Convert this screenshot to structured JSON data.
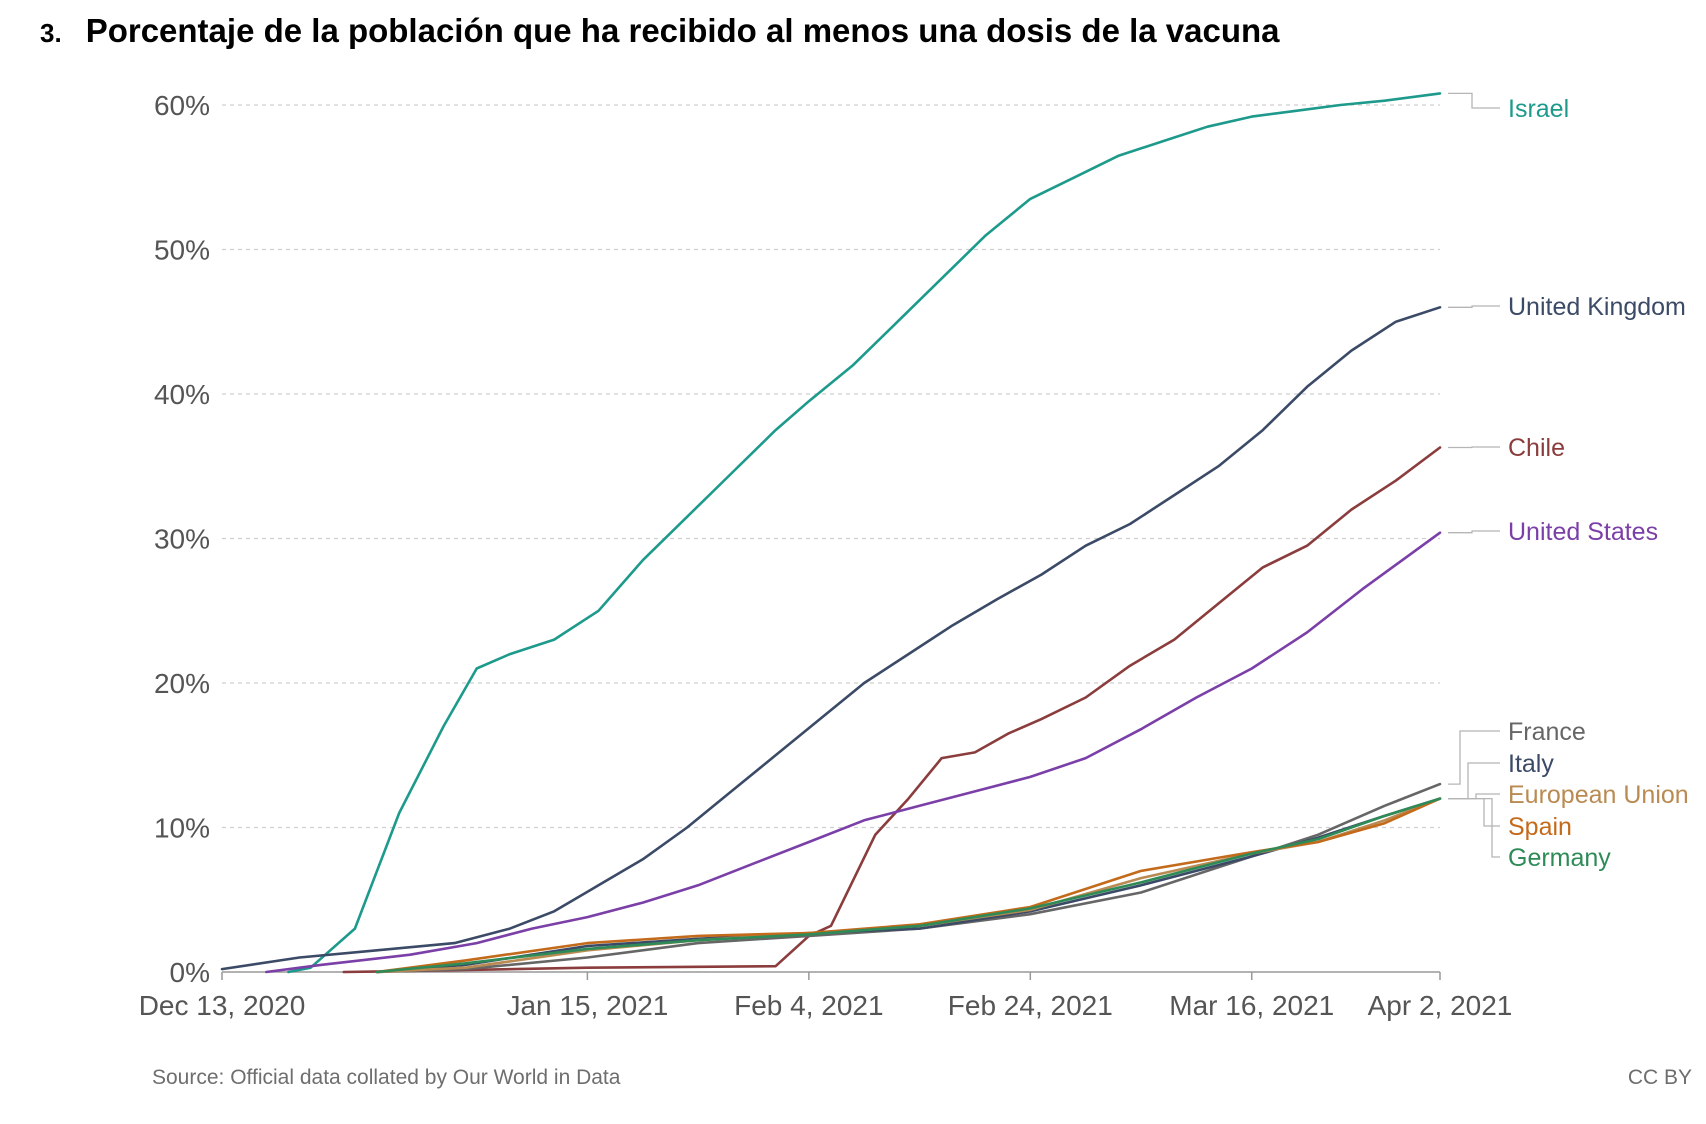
{
  "title": {
    "number": "3.",
    "text": "Porcentaje de la población que ha recibido al menos una dosis de la vacuna"
  },
  "source": "Source: Official data collated by Our World in Data",
  "license": "CC BY",
  "chart_data": {
    "type": "line",
    "title": "Porcentaje de la población que ha recibido al menos una dosis de la vacuna",
    "y_ticks": [
      "0%",
      "10%",
      "20%",
      "30%",
      "40%",
      "50%",
      "60%"
    ],
    "y_tick_values": [
      0,
      10,
      20,
      30,
      40,
      50,
      60
    ],
    "ylim": [
      0,
      60
    ],
    "x_ticks": [
      "Dec 13, 2020",
      "Jan 15, 2021",
      "Feb 4, 2021",
      "Feb 24, 2021",
      "Mar 16, 2021",
      "Apr 2, 2021"
    ],
    "x_tick_dates": [
      "2020-12-13",
      "2021-01-15",
      "2021-02-04",
      "2021-02-24",
      "2021-03-16",
      "2021-04-02"
    ],
    "xlim": [
      "2020-12-13",
      "2021-04-02"
    ],
    "grid": "horizontal dashed",
    "legend": "right, line-end labels",
    "series": [
      {
        "name": "Israel",
        "color": "#1d9a8c",
        "x": [
          "2020-12-19",
          "2020-12-21",
          "2020-12-25",
          "2020-12-29",
          "2021-01-02",
          "2021-01-05",
          "2021-01-08",
          "2021-01-12",
          "2021-01-16",
          "2021-01-20",
          "2021-01-24",
          "2021-01-28",
          "2021-02-01",
          "2021-02-04",
          "2021-02-08",
          "2021-02-12",
          "2021-02-16",
          "2021-02-20",
          "2021-02-24",
          "2021-02-28",
          "2021-03-04",
          "2021-03-08",
          "2021-03-12",
          "2021-03-16",
          "2021-03-20",
          "2021-03-24",
          "2021-03-28",
          "2021-04-02"
        ],
        "y": [
          0,
          0.3,
          3.0,
          11.0,
          17.0,
          21.0,
          22.0,
          23.0,
          25.0,
          28.5,
          31.5,
          34.5,
          37.5,
          39.5,
          42.0,
          45.0,
          48.0,
          51.0,
          53.5,
          55.0,
          56.5,
          57.5,
          58.5,
          59.2,
          59.6,
          60.0,
          60.3,
          60.8
        ]
      },
      {
        "name": "United Kingdom",
        "color": "#3b4a66",
        "x": [
          "2020-12-13",
          "2020-12-20",
          "2020-12-27",
          "2021-01-03",
          "2021-01-08",
          "2021-01-12",
          "2021-01-16",
          "2021-01-20",
          "2021-01-24",
          "2021-01-28",
          "2021-02-01",
          "2021-02-05",
          "2021-02-09",
          "2021-02-13",
          "2021-02-17",
          "2021-02-21",
          "2021-02-25",
          "2021-03-01",
          "2021-03-05",
          "2021-03-09",
          "2021-03-13",
          "2021-03-17",
          "2021-03-21",
          "2021-03-25",
          "2021-03-29",
          "2021-04-02"
        ],
        "y": [
          0.2,
          1.0,
          1.5,
          2.0,
          3.0,
          4.2,
          6.0,
          7.8,
          10.0,
          12.5,
          15.0,
          17.5,
          20.0,
          22.0,
          24.0,
          25.8,
          27.5,
          29.5,
          31.0,
          33.0,
          35.0,
          37.5,
          40.5,
          43.0,
          45.0,
          46.0
        ]
      },
      {
        "name": "Chile",
        "color": "#8b3d3d",
        "x": [
          "2020-12-24",
          "2021-01-01",
          "2021-01-15",
          "2021-02-01",
          "2021-02-04",
          "2021-02-06",
          "2021-02-10",
          "2021-02-13",
          "2021-02-16",
          "2021-02-19",
          "2021-02-22",
          "2021-02-25",
          "2021-03-01",
          "2021-03-05",
          "2021-03-09",
          "2021-03-13",
          "2021-03-17",
          "2021-03-21",
          "2021-03-25",
          "2021-03-29",
          "2021-04-02"
        ],
        "y": [
          0,
          0.1,
          0.3,
          0.4,
          2.5,
          3.2,
          9.5,
          12.0,
          14.8,
          15.2,
          16.5,
          17.5,
          19.0,
          21.2,
          23.0,
          25.5,
          28.0,
          29.5,
          32.0,
          34.0,
          36.3
        ]
      },
      {
        "name": "United States",
        "color": "#7b3fa8",
        "x": [
          "2020-12-17",
          "2020-12-22",
          "2020-12-30",
          "2021-01-05",
          "2021-01-10",
          "2021-01-15",
          "2021-01-20",
          "2021-01-25",
          "2021-01-30",
          "2021-02-04",
          "2021-02-09",
          "2021-02-14",
          "2021-02-19",
          "2021-02-24",
          "2021-03-01",
          "2021-03-06",
          "2021-03-11",
          "2021-03-16",
          "2021-03-21",
          "2021-03-26",
          "2021-04-02"
        ],
        "y": [
          0,
          0.5,
          1.2,
          2.0,
          3.0,
          3.8,
          4.8,
          6.0,
          7.5,
          9.0,
          10.5,
          11.5,
          12.5,
          13.5,
          14.8,
          16.8,
          19.0,
          21.0,
          23.5,
          26.5,
          30.4
        ]
      },
      {
        "name": "France",
        "color": "#666666",
        "x": [
          "2020-12-27",
          "2021-01-04",
          "2021-01-15",
          "2021-01-25",
          "2021-02-04",
          "2021-02-14",
          "2021-02-24",
          "2021-03-06",
          "2021-03-16",
          "2021-03-22",
          "2021-03-28",
          "2021-04-02"
        ],
        "y": [
          0,
          0.2,
          1.0,
          2.0,
          2.5,
          3.0,
          4.0,
          5.5,
          8.0,
          9.5,
          11.5,
          13.0
        ]
      },
      {
        "name": "Italy",
        "color": "#3b4a66",
        "x": [
          "2020-12-27",
          "2021-01-04",
          "2021-01-15",
          "2021-01-25",
          "2021-02-04",
          "2021-02-14",
          "2021-02-24",
          "2021-03-06",
          "2021-03-16",
          "2021-03-22",
          "2021-03-28",
          "2021-04-02"
        ],
        "y": [
          0,
          0.5,
          1.8,
          2.3,
          2.7,
          3.0,
          4.2,
          6.0,
          8.0,
          9.3,
          10.8,
          12.0
        ]
      },
      {
        "name": "European Union",
        "color": "#b98a52",
        "x": [
          "2020-12-27",
          "2021-01-04",
          "2021-01-15",
          "2021-01-25",
          "2021-02-04",
          "2021-02-14",
          "2021-02-24",
          "2021-03-06",
          "2021-03-16",
          "2021-03-22",
          "2021-03-28",
          "2021-04-02"
        ],
        "y": [
          0,
          0.3,
          1.5,
          2.2,
          2.7,
          3.2,
          4.3,
          6.5,
          8.2,
          9.0,
          10.5,
          12.0
        ]
      },
      {
        "name": "Spain",
        "color": "#c36a1b",
        "x": [
          "2020-12-27",
          "2021-01-04",
          "2021-01-15",
          "2021-01-25",
          "2021-02-04",
          "2021-02-14",
          "2021-02-24",
          "2021-03-06",
          "2021-03-16",
          "2021-03-22",
          "2021-03-28",
          "2021-04-02"
        ],
        "y": [
          0,
          0.8,
          2.0,
          2.5,
          2.7,
          3.3,
          4.5,
          7.0,
          8.3,
          9.0,
          10.3,
          12.0
        ]
      },
      {
        "name": "Germany",
        "color": "#2e8b57",
        "x": [
          "2020-12-27",
          "2021-01-04",
          "2021-01-15",
          "2021-01-25",
          "2021-02-04",
          "2021-02-14",
          "2021-02-24",
          "2021-03-06",
          "2021-03-16",
          "2021-03-22",
          "2021-03-28",
          "2021-04-02"
        ],
        "y": [
          0,
          0.6,
          1.6,
          2.2,
          2.6,
          3.2,
          4.4,
          6.2,
          8.2,
          9.2,
          10.8,
          12.0
        ]
      }
    ]
  }
}
